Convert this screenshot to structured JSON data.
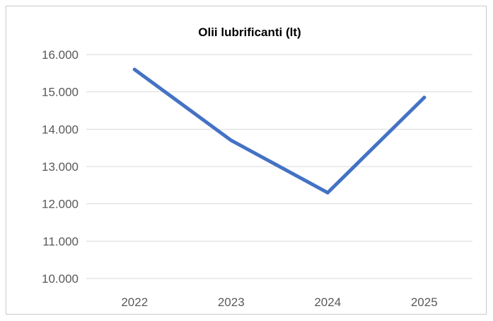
{
  "chart_data": {
    "type": "line",
    "title": "Olii lubrificanti (lt)",
    "xlabel": "",
    "ylabel": "",
    "categories": [
      "2022",
      "2023",
      "2024",
      "2025"
    ],
    "series": [
      {
        "values": [
          15600,
          13700,
          12300,
          14850
        ],
        "color": "#4472C4"
      }
    ],
    "ylim": [
      10000,
      16000
    ],
    "yticks": [
      10000,
      11000,
      12000,
      13000,
      14000,
      15000,
      16000
    ],
    "ytick_labels": [
      "10.000",
      "11.000",
      "12.000",
      "13.000",
      "14.000",
      "15.000",
      "16.000"
    ],
    "grid": true,
    "gridline_color": "#D9D9D9",
    "legend": "none"
  }
}
